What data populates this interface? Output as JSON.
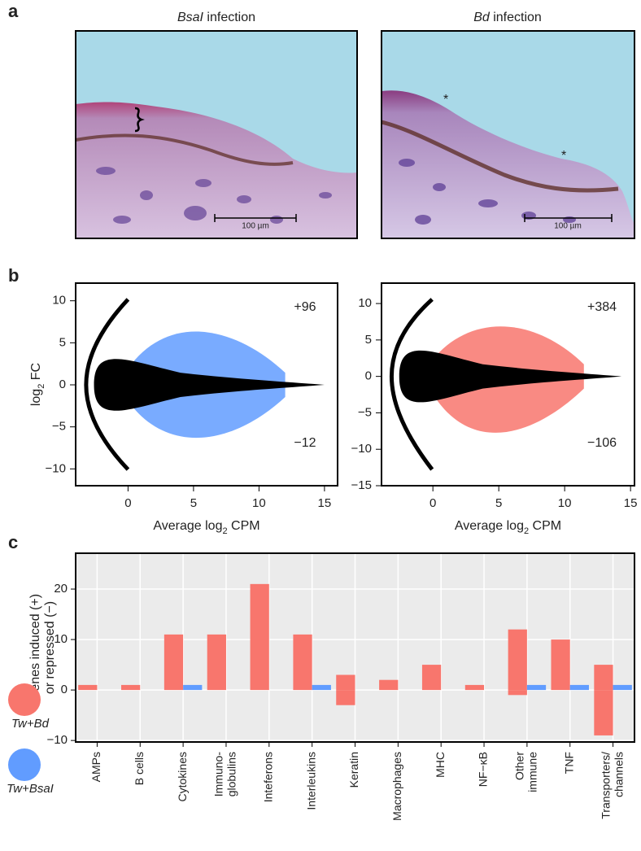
{
  "panel_labels": [
    "a",
    "b",
    "c"
  ],
  "panel_a": {
    "images": [
      {
        "species": "BsaI",
        "title_rest": " infection",
        "scale_bar": "100 µm"
      },
      {
        "species": "Bd",
        "title_rest": " infection",
        "scale_bar": "100 µm"
      }
    ]
  },
  "chart_data": [
    {
      "type": "scatter",
      "xlim": [
        -4,
        16
      ],
      "ylim": [
        -12,
        12.1
      ],
      "xticks": [
        0,
        5,
        10,
        15
      ],
      "yticks": [
        10,
        5,
        0,
        {
          "value": -5,
          "label": "−5"
        },
        {
          "value": -10,
          "label": "−10"
        }
      ],
      "x_label": {
        "pre": "Average log",
        "sub": "2",
        "post": " CPM"
      },
      "y_label": {
        "pre": "log",
        "sub": "2",
        "post": " FC"
      },
      "annotations": [
        "+96",
        "−12"
      ],
      "color": "#619cff"
    },
    {
      "type": "scatter",
      "xlim": [
        -3.9,
        15.3
      ],
      "ylim": [
        -15,
        12.8
      ],
      "xticks": [
        0,
        5,
        10,
        15
      ],
      "yticks": [
        10,
        5,
        0,
        {
          "value": -5,
          "label": "−5"
        },
        {
          "value": -10,
          "label": "−10"
        },
        {
          "value": -15,
          "label": "−15"
        }
      ],
      "x_label": {
        "pre": "Average log",
        "sub": "2",
        "post": " CPM"
      },
      "annotations": [
        "+384",
        "−106"
      ],
      "color": "#f8766d"
    },
    {
      "type": "bar",
      "y_label": [
        "Genes induced (+)",
        "or repressed (−)"
      ],
      "categories": [
        [
          "AMPs"
        ],
        [
          "B cells"
        ],
        [
          "Cytokines"
        ],
        [
          "Immuno-",
          "globulins"
        ],
        [
          "Inteferons"
        ],
        [
          "Interleukins"
        ],
        [
          "Keratin"
        ],
        [
          "Macrophages"
        ],
        [
          "MHC"
        ],
        [
          "NF−κB"
        ],
        [
          "Other",
          "immune"
        ],
        [
          "TNF"
        ],
        [
          "Transporters/",
          "channels"
        ]
      ],
      "series": [
        {
          "name": "Tw+Bd",
          "color": "#f8766d",
          "values": [
            1,
            1,
            11,
            11,
            21,
            11,
            3,
            2,
            5,
            1,
            12,
            10,
            5
          ],
          "repressed": [
            0,
            0,
            0,
            0,
            0,
            0,
            -3,
            0,
            0,
            0,
            -1,
            0,
            -9
          ]
        },
        {
          "name": "Tw+BsaI",
          "color": "#619cff",
          "values": [
            0,
            0,
            1,
            0,
            0,
            1,
            0,
            0,
            0,
            0,
            1,
            1,
            1
          ],
          "repressed": [
            0,
            0,
            0,
            0,
            0,
            0,
            0,
            0,
            0,
            0,
            0,
            0,
            0
          ]
        }
      ],
      "ylim": [
        -10.3,
        27.1
      ],
      "yticks": [
        {
          "value": -10,
          "label": "−10"
        },
        0,
        10,
        20
      ],
      "grid": true
    }
  ]
}
